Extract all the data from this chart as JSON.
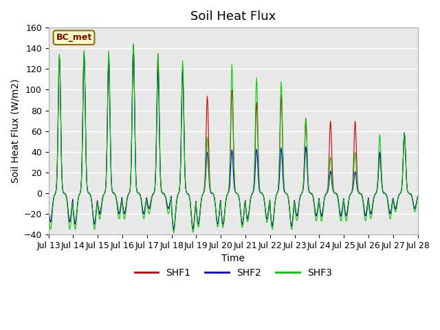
{
  "title": "Soil Heat Flux",
  "ylabel": "Soil Heat Flux (W/m2)",
  "xlabel": "Time",
  "ylim": [
    -40,
    160
  ],
  "yticks": [
    -40,
    -20,
    0,
    20,
    40,
    60,
    80,
    100,
    120,
    140,
    160
  ],
  "xtick_labels": [
    "Jul 13",
    "Jul 14",
    "Jul 15",
    "Jul 16",
    "Jul 17",
    "Jul 18",
    "Jul 19",
    "Jul 20",
    "Jul 21",
    "Jul 22",
    "Jul 23",
    "Jul 24",
    "Jul 25",
    "Jul 26",
    "Jul 27",
    "Jul 28"
  ],
  "colors": {
    "SHF1": "#cc0000",
    "SHF2": "#0000cc",
    "SHF3": "#00cc00"
  },
  "legend_station": "BC_met",
  "background_color": "#e8e8e8",
  "fig_background": "#ffffff",
  "grid_color": "#ffffff",
  "title_fontsize": 13,
  "label_fontsize": 10,
  "tick_fontsize": 9,
  "n_days": 15,
  "points_per_day": 48,
  "peaks1": [
    133,
    135,
    131,
    141,
    135,
    119,
    94,
    100,
    88,
    95,
    72,
    70,
    70,
    39,
    58
  ],
  "peaks2": [
    133,
    137,
    130,
    143,
    120,
    119,
    40,
    42,
    43,
    44,
    45,
    21,
    21,
    40,
    58
  ],
  "peaks3": [
    135,
    138,
    138,
    145,
    135,
    128,
    54,
    125,
    112,
    108,
    72,
    35,
    40,
    57,
    58
  ],
  "night_min1": [
    -28,
    -30,
    -20,
    -20,
    -15,
    -35,
    -30,
    -30,
    -25,
    -32,
    -22,
    -22,
    -22,
    -20,
    -15
  ],
  "night_min2": [
    -28,
    -30,
    -20,
    -20,
    -15,
    -35,
    -30,
    -30,
    -25,
    -32,
    -22,
    -22,
    -22,
    -20,
    -15
  ],
  "night_min3": [
    -35,
    -35,
    -25,
    -25,
    -20,
    -38,
    -33,
    -33,
    -28,
    -35,
    -27,
    -27,
    -27,
    -25,
    -18
  ]
}
